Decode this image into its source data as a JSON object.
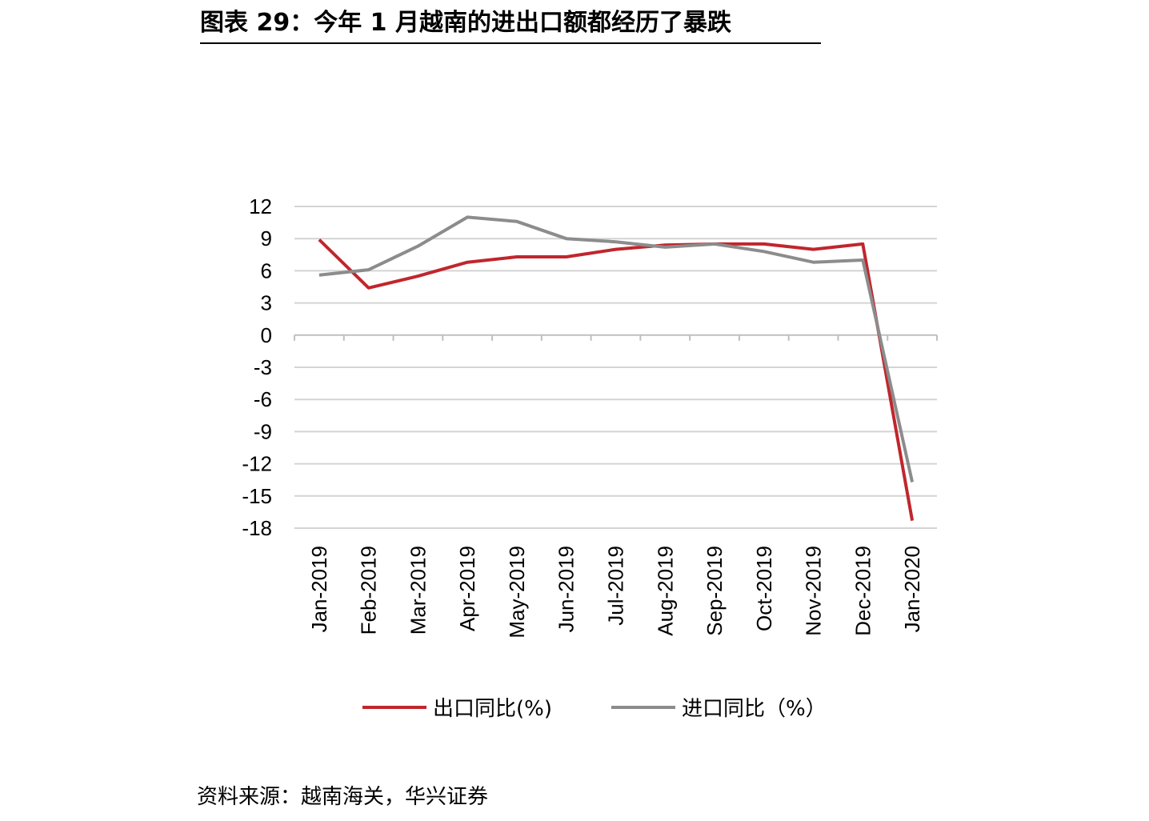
{
  "title": "图表 29：今年 1 月越南的进出口额都经历了暴跌",
  "source": "资料来源：越南海关，华兴证券",
  "colors": {
    "export": "#c0262d",
    "import": "#8c8c8c",
    "grid": "#d4d4d4",
    "axis": "#bfbfbf"
  },
  "chart_data": {
    "type": "line",
    "x": [
      "Jan-2019",
      "Feb-2019",
      "Mar-2019",
      "Apr-2019",
      "May-2019",
      "Jun-2019",
      "Jul-2019",
      "Aug-2019",
      "Sep-2019",
      "Oct-2019",
      "Nov-2019",
      "Dec-2019",
      "Jan-2020"
    ],
    "series": [
      {
        "name": "出口同比(%)",
        "color": "#c0262d",
        "values": [
          8.9,
          4.4,
          5.5,
          6.8,
          7.3,
          7.3,
          8.0,
          8.4,
          8.5,
          8.5,
          8.0,
          8.5,
          -17.3
        ]
      },
      {
        "name": "进口同比（%）",
        "color": "#8c8c8c",
        "values": [
          5.6,
          6.1,
          8.3,
          11.0,
          10.6,
          9.0,
          8.7,
          8.2,
          8.5,
          7.8,
          6.8,
          7.0,
          -13.7
        ]
      }
    ],
    "yticks": [
      12,
      9,
      6,
      3,
      0,
      -3,
      -6,
      -9,
      -12,
      -15,
      -18
    ],
    "ylim": [
      -18,
      12
    ],
    "grid": true,
    "legend_position": "bottom"
  }
}
